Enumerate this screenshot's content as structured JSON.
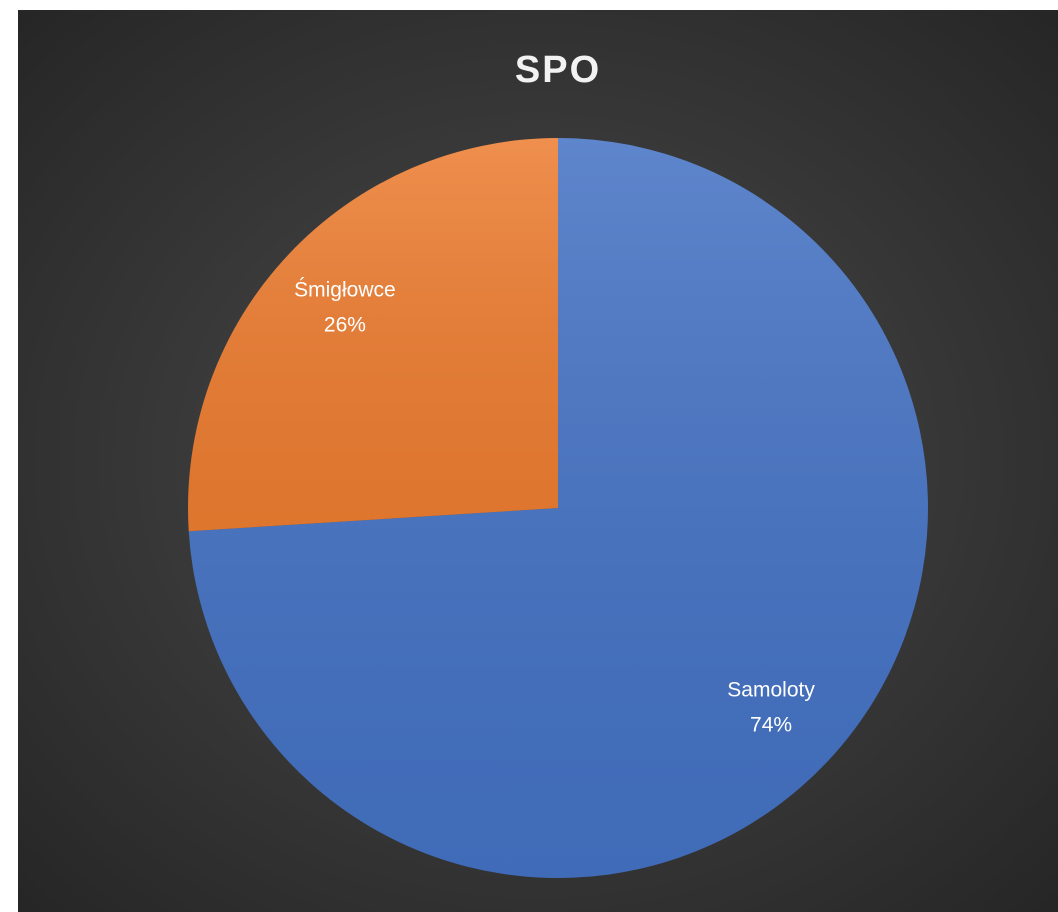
{
  "chart_data": {
    "type": "pie",
    "title": "SPO",
    "categories": [
      "Samoloty",
      "Śmigłowce"
    ],
    "values": [
      74,
      26
    ],
    "value_labels": [
      "74%",
      "26%"
    ],
    "colors": [
      "#4472c4",
      "#ed7d31"
    ]
  }
}
